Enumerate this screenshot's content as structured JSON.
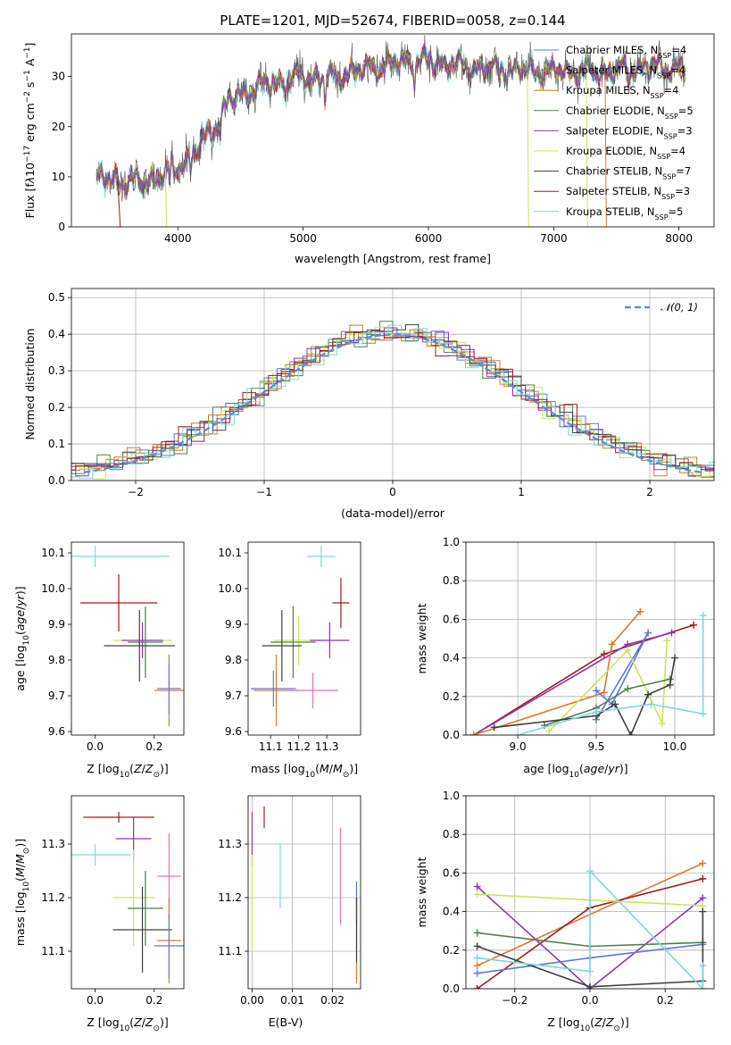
{
  "colors": {
    "ch_miles": "#5a79d6",
    "sa_miles": "#e0762e",
    "kr_miles": "#b8860b",
    "ch_elodie": "#4f7f55",
    "sa_elodie": "#8e34b4",
    "kr_elodie": "#c9e65a",
    "ch_stelib": "#404040",
    "sa_stelib": "#a31a1a",
    "kr_stelib": "#7dd7dc",
    "pink": "#ee70b3",
    "gauss": "#5b8fd9"
  },
  "chart_data": [
    {
      "type": "line",
      "id": "spectrum",
      "title": "PLATE=1201, MJD=52674, FIBERID=0058, z=0.144",
      "xlabel": "wavelength [Angstrom, rest frame]",
      "ylabel": "Flux [fλ10⁻¹⁷ erg cm⁻² s⁻¹ A⁻¹]",
      "xlim": [
        3150,
        8280
      ],
      "ylim": [
        0,
        38.5
      ],
      "xticks": [
        "4000",
        "5000",
        "6000",
        "7000",
        "8000"
      ],
      "yticks": [
        "0",
        "10",
        "20",
        "30"
      ],
      "x_range": [
        3350,
        8050
      ],
      "approx_continuum": [
        [
          3350,
          9.5
        ],
        [
          3700,
          9
        ],
        [
          3900,
          10.5
        ],
        [
          4100,
          14
        ],
        [
          4300,
          20
        ],
        [
          4400,
          25
        ],
        [
          4600,
          27.5
        ],
        [
          4800,
          29
        ],
        [
          5000,
          30
        ],
        [
          5200,
          30
        ],
        [
          5500,
          31.5
        ],
        [
          5800,
          33
        ],
        [
          6000,
          33
        ],
        [
          6300,
          32
        ],
        [
          6600,
          31.5
        ],
        [
          7000,
          31
        ],
        [
          7400,
          31
        ],
        [
          7800,
          32
        ],
        [
          8050,
          31.5
        ]
      ],
      "legend": [
        "Chabrier MILES, N_SSP=4",
        "Salpeter MILES, N_SSP=4",
        "Kroupa MILES, N_SSP=4",
        "Chabrier ELODIE, N_SSP=5",
        "Salpeter ELODIE, N_SSP=3",
        "Kroupa ELODIE, N_SSP=4",
        "Chabrier STELIB, N_SSP=7",
        "Salpeter STELIB, N_SSP=3",
        "Kroupa STELIB, N_SSP=5"
      ],
      "legend_location": "upper-right"
    },
    {
      "type": "step",
      "id": "residuals",
      "xlabel": "(data-model)/error",
      "ylabel": "Normed distribution",
      "xlim": [
        -2.5,
        2.5
      ],
      "ylim": [
        0,
        0.525
      ],
      "xticks": [
        "−2",
        "−1",
        "0",
        "1",
        "2"
      ],
      "yticks": [
        "0.0",
        "0.1",
        "0.2",
        "0.3",
        "0.4",
        "0.5"
      ],
      "gauss_label": "𝒩(0, 1)",
      "grid": true
    },
    {
      "type": "errorbar",
      "id": "age_vs_Z",
      "xlabel": "Z [log10(Z/Z⊙)]",
      "ylabel": "age  [log10(age/yr)]",
      "xlim": [
        -0.08,
        0.3
      ],
      "ylim": [
        9.59,
        10.13
      ],
      "xticks": [
        "0.0",
        "0.2"
      ],
      "yticks": [
        "9.6",
        "9.7",
        "9.8",
        "9.9",
        "10.0",
        "10.1"
      ],
      "points": [
        {
          "c": "kr_stelib",
          "x": 0.0,
          "xe": 0.25,
          "y": 10.09,
          "ye": 0.03
        },
        {
          "c": "sa_stelib",
          "x": 0.08,
          "xe": 0.13,
          "y": 9.96,
          "ye": 0.08
        },
        {
          "c": "kr_elodie",
          "x": 0.16,
          "xe": 0.1,
          "y": 9.855,
          "ye": 0.04
        },
        {
          "c": "sa_elodie",
          "x": 0.16,
          "xe": 0.07,
          "y": 9.855,
          "ye": 0.05
        },
        {
          "c": "ch_elodie",
          "x": 0.17,
          "xe": 0.06,
          "y": 9.85,
          "ye": 0.1
        },
        {
          "c": "ch_stelib",
          "x": 0.15,
          "xe": 0.12,
          "y": 9.84,
          "ye": 0.1
        },
        {
          "c": "sa_miles",
          "x": 0.25,
          "xe": 0.05,
          "y": 9.715,
          "ye": 0.1
        },
        {
          "c": "ch_miles",
          "x": 0.25,
          "xe": 0.04,
          "y": 9.72,
          "ye": 0.07
        }
      ]
    },
    {
      "type": "errorbar",
      "id": "age_vs_mass",
      "xlabel": "mass [log10(M/M⊙)]",
      "ylabel": "",
      "xlim": [
        11.02,
        11.42
      ],
      "ylim": [
        9.59,
        10.13
      ],
      "xticks": [
        "11.1",
        "11.2",
        "11.3"
      ],
      "yticks": [
        "9.6",
        "9.7",
        "9.8",
        "9.9",
        "10.0",
        "10.1"
      ],
      "points": [
        {
          "c": "kr_stelib",
          "x": 11.28,
          "xe": 0.05,
          "y": 10.09,
          "ye": 0.03
        },
        {
          "c": "sa_stelib",
          "x": 11.35,
          "xe": 0.03,
          "y": 9.96,
          "ye": 0.07
        },
        {
          "c": "kr_elodie",
          "x": 11.2,
          "xe": 0.09,
          "y": 9.855,
          "ye": 0.07
        },
        {
          "c": "sa_elodie",
          "x": 11.31,
          "xe": 0.07,
          "y": 9.855,
          "ye": 0.05
        },
        {
          "c": "ch_elodie",
          "x": 11.18,
          "xe": 0.08,
          "y": 9.85,
          "ye": 0.1
        },
        {
          "c": "ch_stelib",
          "x": 11.14,
          "xe": 0.07,
          "y": 9.84,
          "ye": 0.1
        },
        {
          "c": "sa_miles",
          "x": 11.12,
          "xe": 0.08,
          "y": 9.715,
          "ye": 0.1
        },
        {
          "c": "ch_miles",
          "x": 11.11,
          "xe": 0.08,
          "y": 9.72,
          "ye": 0.05
        },
        {
          "c": "pink",
          "x": 11.25,
          "xe": 0.09,
          "y": 9.715,
          "ye": 0.05
        }
      ]
    },
    {
      "type": "line",
      "id": "weight_vs_age",
      "xlabel": "age  [log10(age/yr)]",
      "ylabel": "mass weight",
      "xlim": [
        8.67,
        10.25
      ],
      "ylim": [
        0,
        1.0
      ],
      "xticks": [
        "9.0",
        "9.5",
        "10.0"
      ],
      "yticks": [
        "0.0",
        "0.2",
        "0.4",
        "0.6",
        "0.8",
        "1.0"
      ],
      "series": [
        {
          "c": "sa_stelib",
          "x": [
            8.72,
            9.55,
            10.12
          ],
          "y": [
            0.0,
            0.42,
            0.57
          ]
        },
        {
          "c": "sa_elodie",
          "x": [
            8.72,
            9.7,
            9.98
          ],
          "y": [
            0.0,
            0.47,
            0.53
          ]
        },
        {
          "c": "sa_miles",
          "x": [
            8.72,
            9.55,
            9.6,
            9.78
          ],
          "y": [
            0.0,
            0.22,
            0.47,
            0.64
          ]
        },
        {
          "c": "ch_miles",
          "x": [
            9.5,
            9.6,
            9.83,
            9.5
          ],
          "y": [
            0.23,
            0.16,
            0.53,
            0.08
          ]
        },
        {
          "c": "kr_elodie",
          "x": [
            9.2,
            9.7,
            9.92,
            9.95
          ],
          "y": [
            0.02,
            0.44,
            0.06,
            0.49
          ]
        },
        {
          "c": "ch_elodie",
          "x": [
            9.17,
            9.5,
            9.7,
            9.97
          ],
          "y": [
            0.05,
            0.14,
            0.24,
            0.29
          ]
        },
        {
          "c": "ch_stelib",
          "x": [
            8.85,
            9.5,
            9.62,
            9.72,
            9.83,
            9.97,
            10.0
          ],
          "y": [
            0.04,
            0.1,
            0.16,
            0.0,
            0.21,
            0.26,
            0.4
          ]
        },
        {
          "c": "kr_stelib",
          "x": [
            9.0,
            9.5,
            9.85,
            10.18,
            10.18
          ],
          "y": [
            0.0,
            0.12,
            0.16,
            0.11,
            0.62
          ]
        }
      ]
    },
    {
      "type": "errorbar",
      "id": "mass_vs_Z",
      "xlabel": "Z [log10(Z/Z⊙)]",
      "ylabel": "mass [log10(M/M⊙)]",
      "xlim": [
        -0.08,
        0.3
      ],
      "ylim": [
        11.03,
        11.39
      ],
      "xticks": [
        "0.0",
        "0.2"
      ],
      "yticks": [
        "11.1",
        "11.2",
        "11.3"
      ],
      "points": [
        {
          "c": "sa_stelib",
          "x": 0.08,
          "xe": 0.12,
          "y": 11.35,
          "ye": 0.01
        },
        {
          "c": "sa_elodie",
          "x": 0.13,
          "xe": 0.06,
          "y": 11.31,
          "ye": 0.04
        },
        {
          "c": "kr_stelib",
          "x": 0.0,
          "xe": 0.12,
          "y": 11.28,
          "ye": 0.02
        },
        {
          "c": "pink",
          "x": 0.25,
          "xe": 0.04,
          "y": 11.24,
          "ye": 0.08
        },
        {
          "c": "kr_elodie",
          "x": 0.13,
          "xe": 0.07,
          "y": 11.2,
          "ye": 0.09
        },
        {
          "c": "ch_elodie",
          "x": 0.17,
          "xe": 0.06,
          "y": 11.18,
          "ye": 0.07
        },
        {
          "c": "ch_stelib",
          "x": 0.16,
          "xe": 0.1,
          "y": 11.14,
          "ye": 0.08
        },
        {
          "c": "sa_miles",
          "x": 0.25,
          "xe": 0.04,
          "y": 11.12,
          "ye": 0.08
        },
        {
          "c": "ch_miles",
          "x": 0.25,
          "xe": 0.05,
          "y": 11.11,
          "ye": 0.06
        }
      ]
    },
    {
      "type": "errorbar",
      "id": "mass_vs_ebv",
      "xlabel": "E(B-V)",
      "ylabel": "",
      "xlim": [
        -0.001,
        0.027
      ],
      "ylim": [
        11.03,
        11.39
      ],
      "xticks": [
        "0.00",
        "0.01",
        "0.02"
      ],
      "yticks": [
        "11.1",
        "11.2",
        "11.3"
      ],
      "points": [
        {
          "c": "sa_stelib",
          "x": 0.003,
          "xe": 0.0,
          "y": 11.35,
          "ye": 0.02
        },
        {
          "c": "sa_elodie",
          "x": 0.0,
          "xe": 0.0,
          "y": 11.31,
          "ye": 0.05
        },
        {
          "c": "kr_stelib",
          "x": 0.007,
          "xe": 0.0,
          "y": 11.24,
          "ye": 0.06
        },
        {
          "c": "pink",
          "x": 0.022,
          "xe": 0.0,
          "y": 11.24,
          "ye": 0.09
        },
        {
          "c": "kr_elodie",
          "x": 0.0,
          "xe": 0.0,
          "y": 11.19,
          "ye": 0.09
        },
        {
          "c": "ch_miles",
          "x": 0.026,
          "xe": 0.0,
          "y": 11.19,
          "ye": 0.04
        },
        {
          "c": "sa_miles",
          "x": 0.026,
          "xe": 0.0,
          "y": 11.12,
          "ye": 0.08
        },
        {
          "c": "ch_stelib",
          "x": 0.026,
          "xe": 0.0,
          "y": 11.14,
          "ye": 0.06
        }
      ]
    },
    {
      "type": "line",
      "id": "weight_vs_Z",
      "xlabel": "Z [log10(Z/Z⊙)]",
      "ylabel": "mass weight",
      "xlim": [
        -0.33,
        0.33
      ],
      "ylim": [
        0,
        1.0
      ],
      "xticks": [
        "−0.2",
        "0.0",
        "0.2"
      ],
      "yticks": [
        "0.0",
        "0.2",
        "0.4",
        "0.6",
        "0.8",
        "1.0"
      ],
      "series": [
        {
          "c": "sa_miles",
          "x": [
            -0.3,
            0.3
          ],
          "y": [
            0.12,
            0.65
          ]
        },
        {
          "c": "sa_stelib",
          "x": [
            -0.3,
            0.0,
            0.3
          ],
          "y": [
            0.0,
            0.42,
            0.57
          ]
        },
        {
          "c": "sa_elodie",
          "x": [
            -0.3,
            0.0,
            0.3
          ],
          "y": [
            0.53,
            0.0,
            0.47
          ]
        },
        {
          "c": "kr_elodie",
          "x": [
            -0.3,
            0.0,
            0.3
          ],
          "y": [
            0.49,
            0.46,
            0.43
          ]
        },
        {
          "c": "ch_elodie",
          "x": [
            -0.3,
            0.0,
            0.3
          ],
          "y": [
            0.29,
            0.22,
            0.24
          ]
        },
        {
          "c": "ch_miles",
          "x": [
            -0.3,
            0.0,
            0.3
          ],
          "y": [
            0.08,
            0.16,
            0.23
          ]
        },
        {
          "c": "ch_stelib",
          "x": [
            -0.3,
            0.0,
            0.3,
            0.3
          ],
          "y": [
            0.22,
            0.01,
            0.04,
            0.4
          ]
        },
        {
          "c": "kr_stelib",
          "x": [
            -0.3,
            0.0,
            0.0,
            0.3,
            0.3
          ],
          "y": [
            0.16,
            0.09,
            0.61,
            0.0,
            0.12
          ]
        }
      ]
    }
  ]
}
